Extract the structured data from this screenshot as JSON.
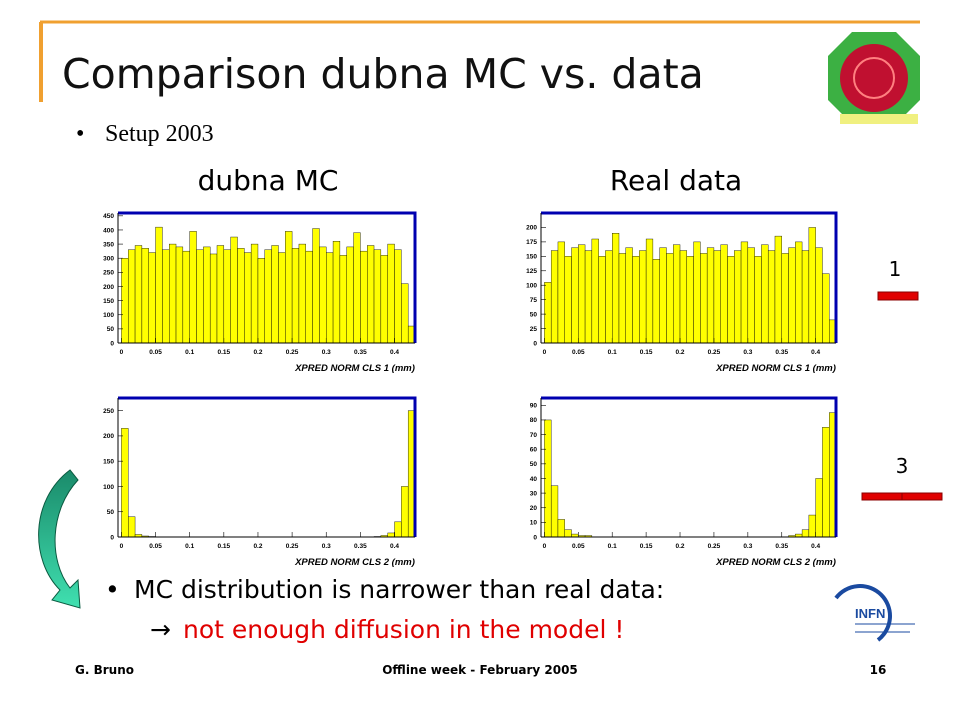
{
  "title": "Comparison dubna MC vs. data",
  "bullet": "Setup 2003",
  "columns": [
    "dubna MC",
    "Real data"
  ],
  "side_labels": [
    "1",
    "3"
  ],
  "conclusion": {
    "text": "MC distribution is narrower than real data:",
    "arrow": "→",
    "sub_text": "not enough diffusion in the model !"
  },
  "footer": {
    "left": "G. Bruno",
    "center": "Offline week - February  2005",
    "right": "16"
  },
  "chart_data": [
    {
      "type": "histogram",
      "xlabel": "XPRED NORM CLS 1 (mm)",
      "color": "#ffff00",
      "bins": [
        0,
        0.01,
        0.02,
        0.03,
        0.04,
        0.05,
        0.06,
        0.07,
        0.08,
        0.09,
        0.1,
        0.11,
        0.12,
        0.13,
        0.14,
        0.15,
        0.16,
        0.17,
        0.18,
        0.19,
        0.2,
        0.21,
        0.22,
        0.23,
        0.24,
        0.25,
        0.26,
        0.27,
        0.28,
        0.29,
        0.3,
        0.31,
        0.32,
        0.33,
        0.34,
        0.35,
        0.36,
        0.37,
        0.38,
        0.39,
        0.4,
        0.41,
        0.42,
        0.43
      ],
      "counts": [
        300,
        330,
        345,
        335,
        320,
        410,
        330,
        350,
        340,
        325,
        395,
        330,
        340,
        315,
        345,
        330,
        375,
        335,
        320,
        350,
        300,
        330,
        345,
        320,
        395,
        335,
        350,
        325,
        405,
        340,
        320,
        360,
        310,
        340,
        390,
        325,
        345,
        330,
        310,
        350,
        330,
        210,
        60
      ],
      "xlim": [
        -0.005,
        0.43
      ],
      "ylim": [
        0,
        460
      ],
      "xticks": [
        0,
        0.05,
        0.1,
        0.15,
        0.2,
        0.25,
        0.3,
        0.35,
        0.4
      ],
      "yticks": [
        0,
        50,
        100,
        150,
        200,
        250,
        300,
        350,
        400,
        450
      ]
    },
    {
      "type": "histogram",
      "xlabel": "XPRED NORM CLS 1 (mm)",
      "color": "#ffff00",
      "bins": [
        0,
        0.01,
        0.02,
        0.03,
        0.04,
        0.05,
        0.06,
        0.07,
        0.08,
        0.09,
        0.1,
        0.11,
        0.12,
        0.13,
        0.14,
        0.15,
        0.16,
        0.17,
        0.18,
        0.19,
        0.2,
        0.21,
        0.22,
        0.23,
        0.24,
        0.25,
        0.26,
        0.27,
        0.28,
        0.29,
        0.3,
        0.31,
        0.32,
        0.33,
        0.34,
        0.35,
        0.36,
        0.37,
        0.38,
        0.39,
        0.4,
        0.41,
        0.42,
        0.43
      ],
      "counts": [
        105,
        160,
        175,
        150,
        165,
        170,
        160,
        180,
        150,
        160,
        190,
        155,
        165,
        150,
        160,
        180,
        145,
        165,
        155,
        170,
        160,
        150,
        175,
        155,
        165,
        160,
        170,
        150,
        160,
        175,
        165,
        150,
        170,
        160,
        185,
        155,
        165,
        175,
        160,
        200,
        165,
        120,
        40
      ],
      "xlim": [
        -0.005,
        0.43
      ],
      "ylim": [
        0,
        225
      ],
      "xticks": [
        0,
        0.05,
        0.1,
        0.15,
        0.2,
        0.25,
        0.3,
        0.35,
        0.4
      ],
      "yticks": [
        0,
        25,
        50,
        75,
        100,
        125,
        150,
        175,
        200
      ]
    },
    {
      "type": "histogram",
      "xlabel": "XPRED NORM CLS 2 (mm)",
      "color": "#ffff00",
      "bins": [
        0,
        0.01,
        0.02,
        0.03,
        0.04,
        0.05,
        0.06,
        0.07,
        0.08,
        0.09,
        0.1,
        0.11,
        0.12,
        0.13,
        0.14,
        0.15,
        0.16,
        0.17,
        0.18,
        0.19,
        0.2,
        0.21,
        0.22,
        0.23,
        0.24,
        0.25,
        0.26,
        0.27,
        0.28,
        0.29,
        0.3,
        0.31,
        0.32,
        0.33,
        0.34,
        0.35,
        0.36,
        0.37,
        0.38,
        0.39,
        0.4,
        0.41,
        0.42,
        0.43
      ],
      "counts": [
        215,
        40,
        5,
        2,
        1,
        0,
        0,
        0,
        0,
        0,
        0,
        0,
        0,
        0,
        0,
        0,
        0,
        0,
        0,
        0,
        0,
        0,
        0,
        0,
        0,
        0,
        0,
        0,
        0,
        0,
        0,
        0,
        0,
        0,
        0,
        0,
        0,
        1,
        3,
        8,
        30,
        100,
        250
      ],
      "xlim": [
        -0.005,
        0.43
      ],
      "ylim": [
        0,
        275
      ],
      "xticks": [
        0,
        0.05,
        0.1,
        0.15,
        0.2,
        0.25,
        0.3,
        0.35,
        0.4
      ],
      "yticks": [
        0,
        50,
        100,
        150,
        200,
        250
      ]
    },
    {
      "type": "histogram",
      "xlabel": "XPRED NORM CLS 2 (mm)",
      "color": "#ffff00",
      "bins": [
        0,
        0.01,
        0.02,
        0.03,
        0.04,
        0.05,
        0.06,
        0.07,
        0.08,
        0.09,
        0.1,
        0.11,
        0.12,
        0.13,
        0.14,
        0.15,
        0.16,
        0.17,
        0.18,
        0.19,
        0.2,
        0.21,
        0.22,
        0.23,
        0.24,
        0.25,
        0.26,
        0.27,
        0.28,
        0.29,
        0.3,
        0.31,
        0.32,
        0.33,
        0.34,
        0.35,
        0.36,
        0.37,
        0.38,
        0.39,
        0.4,
        0.41,
        0.42,
        0.43
      ],
      "counts": [
        80,
        35,
        12,
        5,
        2,
        1,
        1,
        0,
        0,
        0,
        0,
        0,
        0,
        0,
        0,
        0,
        0,
        0,
        0,
        0,
        0,
        0,
        0,
        0,
        0,
        0,
        0,
        0,
        0,
        0,
        0,
        0,
        0,
        0,
        0,
        0,
        1,
        2,
        5,
        15,
        40,
        75,
        85
      ],
      "xlim": [
        -0.005,
        0.43
      ],
      "ylim": [
        0,
        95
      ],
      "xticks": [
        0,
        0.05,
        0.1,
        0.15,
        0.2,
        0.25,
        0.3,
        0.35,
        0.4
      ],
      "yticks": [
        0,
        10,
        20,
        30,
        40,
        50,
        60,
        70,
        80,
        90
      ]
    }
  ]
}
